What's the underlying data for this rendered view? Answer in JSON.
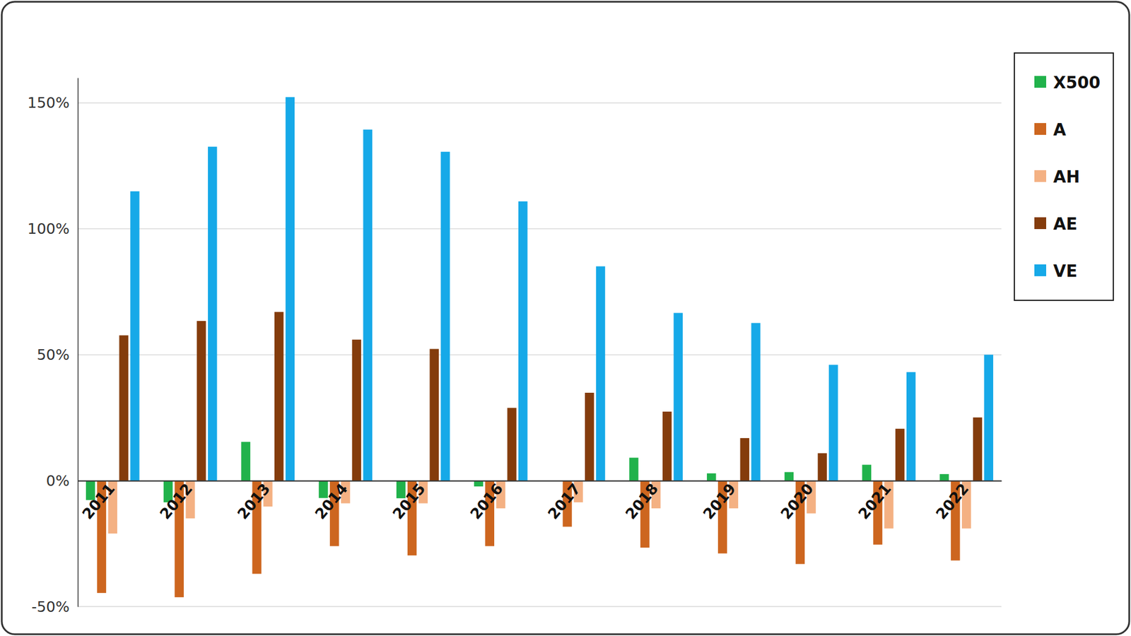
{
  "chart_data": {
    "type": "bar",
    "categories": [
      "2011",
      "2012",
      "2013",
      "2014",
      "2015",
      "2016",
      "2017",
      "2018",
      "2019",
      "2020",
      "2021",
      "2022"
    ],
    "series": [
      {
        "name": "X500",
        "color": "#21b24b",
        "values": [
          -7.7,
          -8.6,
          15.4,
          -6.9,
          -7,
          -2.3,
          0,
          9.1,
          2.9,
          3.4,
          6.3,
          2.6
        ]
      },
      {
        "name": "A",
        "color": "#cd661f",
        "values": [
          -44.6,
          -46.3,
          -37,
          -26,
          -29.7,
          -26,
          -18.3,
          -26.6,
          -28.9,
          -33.1,
          -25.4,
          -31.7
        ]
      },
      {
        "name": "AH",
        "color": "#f4b183",
        "values": [
          -21,
          -15,
          -10.3,
          -9,
          -9,
          -11,
          -8.6,
          -11,
          -11,
          -13,
          -19,
          -19
        ]
      },
      {
        "name": "AE",
        "color": "#843c0c",
        "values": [
          57.7,
          63.4,
          67,
          56,
          52.3,
          28.9,
          34.9,
          27.4,
          16.9,
          10.9,
          20.6,
          25.1
        ]
      },
      {
        "name": "VE",
        "color": "#16a9e8",
        "values": [
          114.9,
          132.6,
          152.3,
          139.4,
          130.6,
          110.9,
          85.1,
          66.6,
          62.6,
          46,
          43.1,
          50
        ]
      }
    ],
    "ylim": [
      -50,
      160
    ],
    "yticks": [
      {
        "value": -50,
        "label": "-50%"
      },
      {
        "value": 0,
        "label": "0%"
      },
      {
        "value": 50,
        "label": "50%"
      },
      {
        "value": 100,
        "label": "100%"
      },
      {
        "value": 150,
        "label": "150%"
      }
    ],
    "grid": true,
    "legend": "top-right"
  }
}
